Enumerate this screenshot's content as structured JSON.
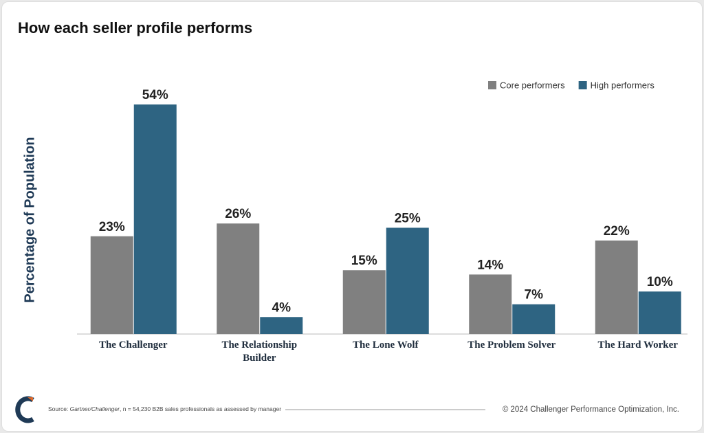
{
  "chart_data": {
    "type": "bar",
    "title": "How each seller profile performs",
    "y_label": "Percentage of Population",
    "categories": [
      "The Challenger",
      "The Relationship Builder",
      "The Lone Wolf",
      "The Problem Solver",
      "The Hard Worker"
    ],
    "series": [
      {
        "name": "Core performers",
        "color": "#808080",
        "values": [
          23,
          26,
          15,
          14,
          22
        ],
        "value_labels": [
          "23%",
          "26%",
          "15%",
          "14%",
          "22%"
        ]
      },
      {
        "name": "High performers",
        "color": "#2e6482",
        "values": [
          54,
          4,
          25,
          7,
          10
        ],
        "value_labels": [
          "54%",
          "4%",
          "25%",
          "7%",
          "10%"
        ]
      }
    ],
    "legend": "top-right"
  },
  "footer": {
    "source_prefix": "Source:",
    "source_italic": "Gartner/Challenger",
    "source_rest": ", n = 54,230 B2B sales professionals as assessed by manager",
    "copyright": "© 2024 Challenger Performance Optimization, Inc."
  }
}
